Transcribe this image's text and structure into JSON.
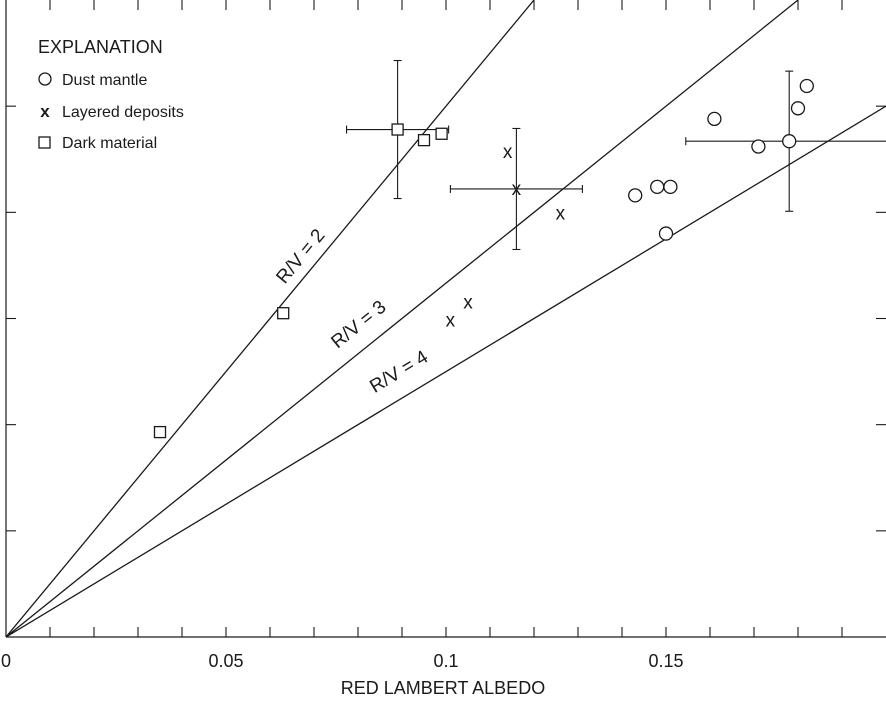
{
  "chart_data": {
    "type": "scatter",
    "title": "",
    "xlabel": "RED LAMBERT ALBEDO",
    "ylabel": "",
    "xlim": [
      0,
      0.2
    ],
    "ylim": [
      0,
      0.06
    ],
    "x_ticks": [
      0,
      0.05,
      0.1,
      0.15
    ],
    "x_tick_labels": [
      "0",
      "0.05",
      "0.1",
      "0.15"
    ],
    "x_minor_step": 0.01,
    "y_ticks": [
      0.01,
      0.02,
      0.03,
      0.04,
      0.05
    ],
    "grid": false,
    "legend": {
      "title": "EXPLANATION",
      "placement": "top-left",
      "entries": [
        {
          "marker": "circle",
          "label": "Dust mantle"
        },
        {
          "marker": "x",
          "label": "Layered deposits"
        },
        {
          "marker": "square",
          "label": "Dark material"
        }
      ]
    },
    "reference_lines": [
      {
        "label": "R/V = 2",
        "ratio": 2
      },
      {
        "label": "R/V = 3",
        "ratio": 3
      },
      {
        "label": "R/V = 4",
        "ratio": 4
      }
    ],
    "series": [
      {
        "name": "Dust mantle",
        "marker": "circle",
        "points": [
          {
            "x": 0.143,
            "y": 0.0416
          },
          {
            "x": 0.148,
            "y": 0.0424
          },
          {
            "x": 0.151,
            "y": 0.0424
          },
          {
            "x": 0.15,
            "y": 0.038
          },
          {
            "x": 0.161,
            "y": 0.0488
          },
          {
            "x": 0.171,
            "y": 0.0462
          },
          {
            "x": 0.178,
            "y": 0.0467,
            "xerr": 0.0235,
            "yerr": 0.0066
          },
          {
            "x": 0.18,
            "y": 0.0498
          },
          {
            "x": 0.182,
            "y": 0.0519
          }
        ]
      },
      {
        "name": "Layered deposits",
        "marker": "x",
        "points": [
          {
            "x": 0.114,
            "y": 0.0457
          },
          {
            "x": 0.116,
            "y": 0.0422,
            "xerr": 0.015,
            "yerr": 0.0057
          },
          {
            "x": 0.126,
            "y": 0.0399
          },
          {
            "x": 0.101,
            "y": 0.0298
          },
          {
            "x": 0.105,
            "y": 0.0315
          }
        ]
      },
      {
        "name": "Dark material",
        "marker": "square",
        "points": [
          {
            "x": 0.035,
            "y": 0.0193
          },
          {
            "x": 0.063,
            "y": 0.0305
          },
          {
            "x": 0.089,
            "y": 0.0478,
            "xerr": 0.0116,
            "yerr": 0.0065
          },
          {
            "x": 0.095,
            "y": 0.0468
          },
          {
            "x": 0.099,
            "y": 0.0474
          }
        ]
      }
    ]
  }
}
